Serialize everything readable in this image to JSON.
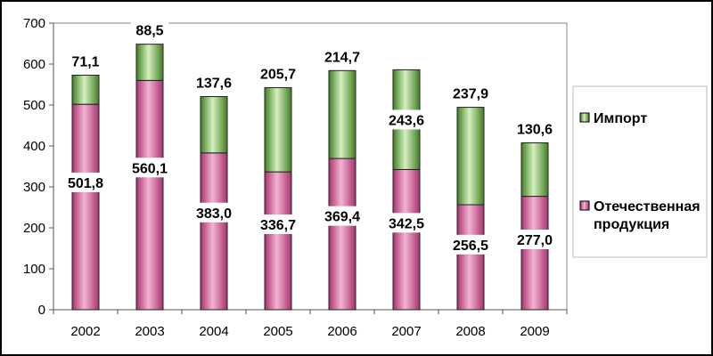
{
  "chart_data": {
    "type": "bar",
    "stacked": true,
    "categories": [
      "2002",
      "2003",
      "2004",
      "2005",
      "2006",
      "2007",
      "2008",
      "2009"
    ],
    "series": [
      {
        "name": "Отечественная продукция",
        "color": "#d46aa2",
        "values": [
          501.8,
          560.1,
          383.0,
          336.7,
          369.4,
          342.5,
          256.5,
          277.0
        ],
        "labels": [
          "501,8",
          "560,1",
          "383,0",
          "336,7",
          "369,4",
          "342,5",
          "256,5",
          "277,0"
        ]
      },
      {
        "name": "Импорт",
        "color": "#7cc05a",
        "values": [
          71.1,
          88.5,
          137.6,
          205.7,
          214.7,
          243.6,
          237.9,
          130.6
        ],
        "labels": [
          "71,1",
          "88,5",
          "137,6",
          "205,7",
          "214,7",
          "243,6",
          "237,9",
          "130,6"
        ]
      }
    ],
    "ylim": [
      0,
      700
    ],
    "yticks": [
      0,
      100,
      200,
      300,
      400,
      500,
      600,
      700
    ],
    "grid": false,
    "legend": "right",
    "legend_lines": {
      "import": [
        "Импорт"
      ],
      "domestic": [
        "Отечественная",
        "продукция"
      ]
    }
  }
}
